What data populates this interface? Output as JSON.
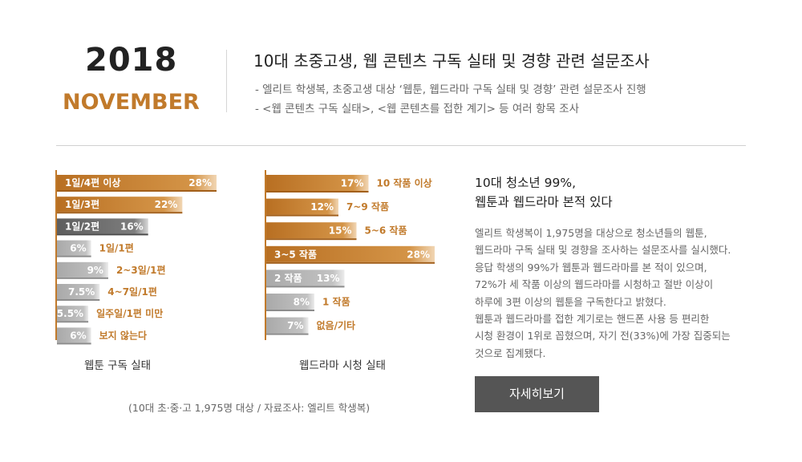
{
  "header": {
    "year": "2018",
    "month": "NOVEMBER",
    "title": "10대 초중고생, 웹 콘텐츠 구독 실태 및 경향 관련 설문조사",
    "bullets": [
      "-  엘리트 학생복, 초중고생 대상 ‘웹툰, 웹드라마 구독 실태 및 경향’ 관련 설문조사 진행",
      "-  <웹 콘텐츠 구독 실태>, <웹 콘텐츠를 접한 계기> 등 여러 항목 조사"
    ]
  },
  "chart_data": [
    {
      "type": "bar",
      "orientation": "horizontal",
      "title": "웹툰 구독 실태",
      "categories": [
        "1일/4편 이상",
        "1일/3편",
        "1일/2편",
        "1일/1편",
        "2~3일/1편",
        "4~7일/1편",
        "일주일/1편 미만",
        "보지 않는다"
      ],
      "value_labels": [
        "28%",
        "22%",
        "16%",
        "6%",
        "9%",
        "7.5%",
        "5.5%",
        "6%"
      ],
      "values": [
        28,
        22,
        16,
        6,
        9,
        7.5,
        5.5,
        6
      ],
      "series_colors": [
        "#c17a2b",
        "#c17a2b",
        "#666666",
        "#b5b5b5",
        "#b5b5b5",
        "#b5b5b5",
        "#b5b5b5",
        "#b5b5b5"
      ]
    },
    {
      "type": "bar",
      "orientation": "horizontal",
      "title": "웹드라마 시청 실태",
      "categories": [
        "10 작품 이상",
        "7~9 작품",
        "5~6 작품",
        "3~5 작품",
        "2 작품",
        "1 작품",
        "없음/기타"
      ],
      "value_labels": [
        "17%",
        "12%",
        "15%",
        "28%",
        "13%",
        "8%",
        "7%"
      ],
      "values": [
        17,
        12,
        15,
        28,
        13,
        8,
        7
      ],
      "series_colors": [
        "#c17a2b",
        "#c17a2b",
        "#c17a2b",
        "#c17a2b",
        "#b5b5b5",
        "#b5b5b5",
        "#b5b5b5"
      ]
    }
  ],
  "source": "(10대 초·중·고 1,975명 대상 / 자료조사: 엘리트 학생복)",
  "summary": {
    "heading": [
      "10대 청소년 99%,",
      "웹툰과 웹드라마 본적 있다"
    ],
    "body": [
      "엘리트 학생복이 1,975명을 대상으로 청소년들의 웹툰,",
      "웹드라마 구독 실태 및 경향을 조사하는 설문조사를 실시했다.",
      "응답 학생의 99%가 웹툰과 웹드라마를 본 적이 있으며,",
      "72%가 세 작품 이상의 웹드라마를 시청하고 절반 이상이",
      "하루에 3편 이상의 웹툰을 구독한다고 밝혔다.",
      "웹툰과 웹드라마를 접한 계기로는 핸드폰 사용 등 편리한",
      "시청 환경이 1위로 꼽혔으며, 자기 전(33%)에 가장 집중되는",
      "것으로 집계됐다."
    ],
    "button_label": "자세히보기"
  },
  "colors": {
    "accent": "#c17a2b",
    "dark": "#666666",
    "light": "#b5b5b5",
    "button": "#555555"
  }
}
